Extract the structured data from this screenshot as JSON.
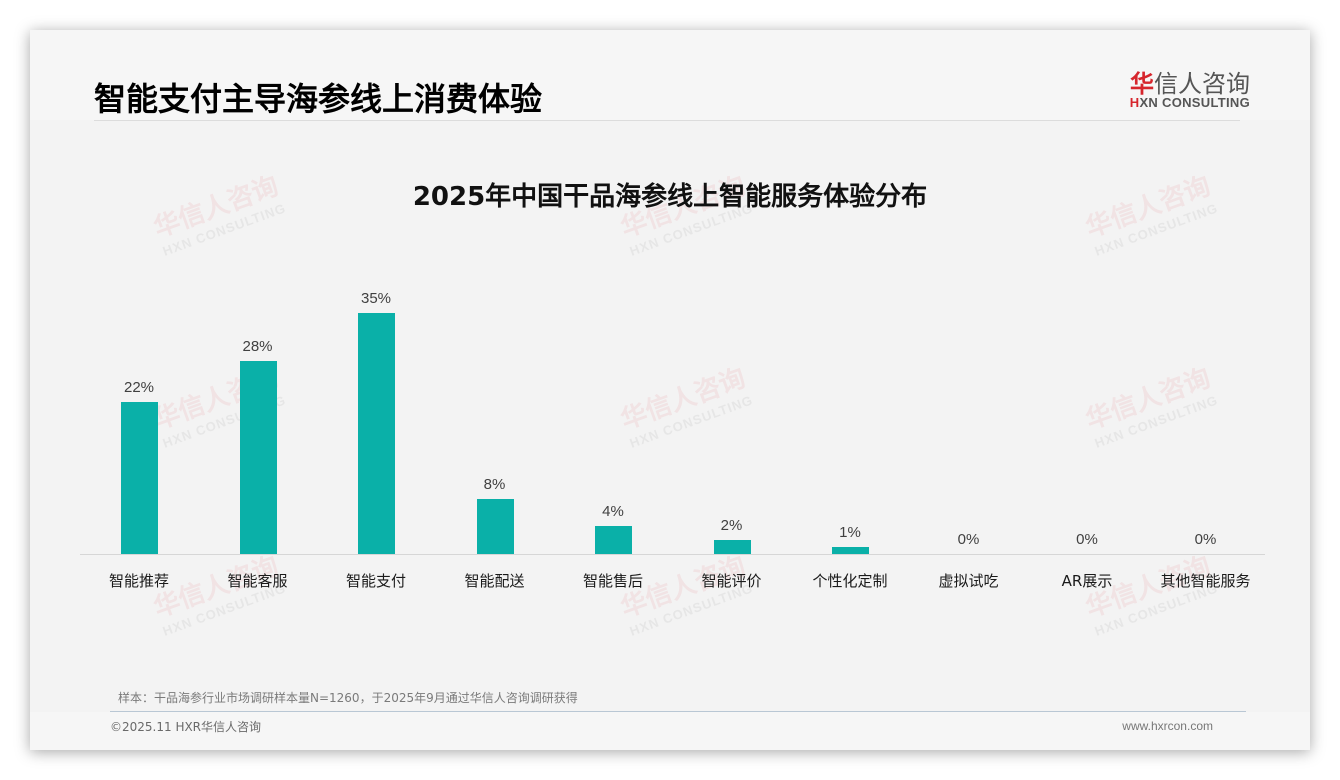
{
  "header": {
    "title": "智能支付主导海参线上消费体验",
    "logo": {
      "cn_first_char": "华",
      "cn_rest": "信人咨询",
      "en_prefix": "H",
      "en_rest": "XN CONSULTING"
    }
  },
  "watermark": {
    "cn": "华信人咨询",
    "en": "HXN CONSULTING"
  },
  "chart_data": {
    "type": "bar",
    "title": "2025年中国干品海参线上智能服务体验分布",
    "categories": [
      "智能推荐",
      "智能客服",
      "智能支付",
      "智能配送",
      "智能售后",
      "智能评价",
      "个性化定制",
      "虚拟试吃",
      "AR展示",
      "其他智能服务"
    ],
    "values": [
      22,
      28,
      35,
      8,
      4,
      2,
      1,
      0,
      0,
      0
    ],
    "value_labels": [
      "22%",
      "28%",
      "35%",
      "8%",
      "4%",
      "2%",
      "1%",
      "0%",
      "0%",
      "0%"
    ],
    "xlabel": "",
    "ylabel": "",
    "unit": "%",
    "grid": false,
    "legend": null,
    "bar_color": "#0ab0a8"
  },
  "footer": {
    "note": "样本：干品海参行业市场调研样本量N=1260，于2025年9月通过华信人咨询调研获得",
    "copyright": "©2025.11 HXR华信人咨询",
    "website": "www.hxrcon.com"
  }
}
